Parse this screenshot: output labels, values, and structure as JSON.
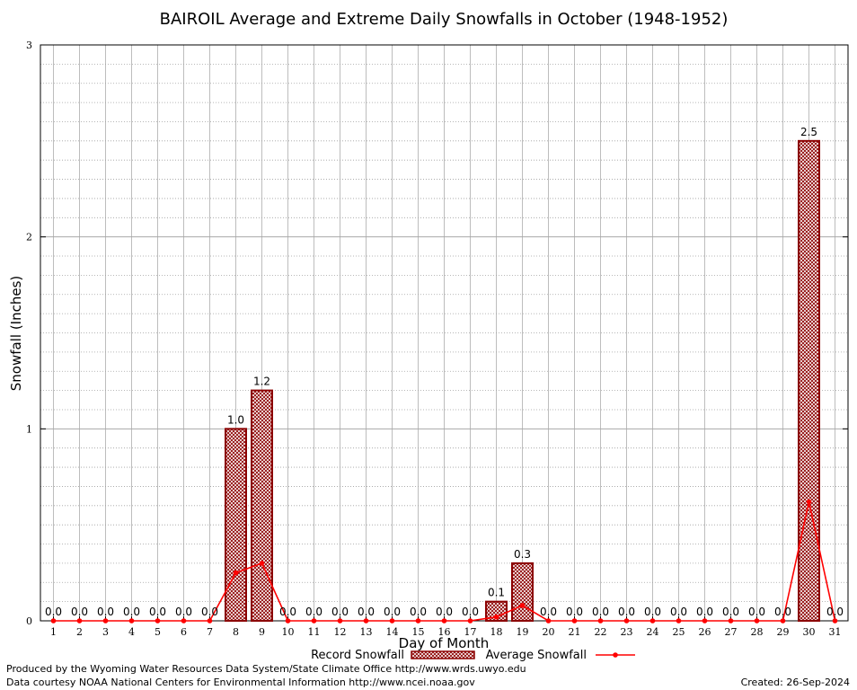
{
  "chart_data": {
    "type": "bar",
    "title": "BAIROIL Average and Extreme Daily Snowfalls in October (1948-1952)",
    "xlabel": "Day of Month",
    "ylabel": "Snowfall (Inches)",
    "ylim": [
      0,
      3
    ],
    "yticks": [
      "0",
      "1",
      "2",
      "3"
    ],
    "categories": [
      "1",
      "2",
      "3",
      "4",
      "5",
      "6",
      "7",
      "8",
      "9",
      "10",
      "11",
      "12",
      "13",
      "14",
      "15",
      "16",
      "17",
      "18",
      "19",
      "20",
      "21",
      "22",
      "23",
      "24",
      "25",
      "26",
      "27",
      "28",
      "29",
      "30",
      "31"
    ],
    "series": [
      {
        "name": "Record Snowfall",
        "kind": "bar",
        "color": "#8b0000",
        "values": [
          0,
          0,
          0,
          0,
          0,
          0,
          0,
          1.0,
          1.2,
          0,
          0,
          0,
          0,
          0,
          0,
          0,
          0,
          0.1,
          0.3,
          0,
          0,
          0,
          0,
          0,
          0,
          0,
          0,
          0,
          0,
          2.5,
          0
        ],
        "labels": [
          "0.0",
          "0.0",
          "0.0",
          "0.0",
          "0.0",
          "0.0",
          "0.0",
          "1.0",
          "1.2",
          "0.0",
          "0.0",
          "0.0",
          "0.0",
          "0.0",
          "0.0",
          "0.0",
          "0.0",
          "0.1",
          "0.3",
          "0.0",
          "0.0",
          "0.0",
          "0.0",
          "0.0",
          "0.0",
          "0.0",
          "0.0",
          "0.0",
          "0.0",
          "2.5",
          "0.0"
        ]
      },
      {
        "name": "Average Snowfall",
        "kind": "line",
        "color": "#ff0000",
        "values": [
          0,
          0,
          0,
          0,
          0,
          0,
          0,
          0.25,
          0.3,
          0,
          0,
          0,
          0,
          0,
          0,
          0,
          0,
          0.02,
          0.08,
          0,
          0,
          0,
          0,
          0,
          0,
          0,
          0,
          0,
          0,
          0.62,
          0
        ]
      }
    ],
    "grid": true,
    "legend": "bottom-center"
  },
  "footer": {
    "produced_by": "Produced by the Wyoming Water Resources Data System/State Climate Office http://www.wrds.uwyo.edu",
    "data_courtesy": "Data courtesy NOAA National Centers for Environmental Information http://www.ncei.noaa.gov",
    "created": "Created:  26-Sep-2024"
  }
}
